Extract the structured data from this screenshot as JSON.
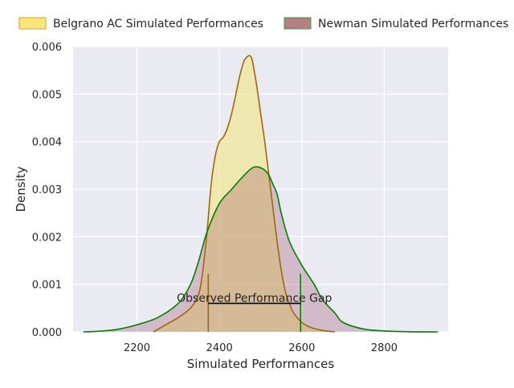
{
  "chart_data": {
    "type": "area",
    "title": "",
    "xlabel": "Simulated Performances",
    "ylabel": "Density",
    "xlim": [
      2045,
      2955
    ],
    "ylim": [
      0,
      0.006
    ],
    "x_ticks": [
      2200,
      2400,
      2600,
      2800
    ],
    "y_ticks": [
      0,
      0.001,
      0.002,
      0.003,
      0.004,
      0.005,
      0.006
    ],
    "x_tick_labels": [
      "2200",
      "2400",
      "2600",
      "2800"
    ],
    "y_tick_labels": [
      "0.000",
      "0.001",
      "0.002",
      "0.003",
      "0.004",
      "0.005",
      "0.006"
    ],
    "grid": true,
    "legend_position": "top",
    "series": [
      {
        "name": "Belgrano AC Simulated Performances",
        "fill_color": "#f0e68c",
        "line_color": "#a0670a",
        "x": [
          2240,
          2270,
          2300,
          2330,
          2350,
          2360,
          2370,
          2380,
          2390,
          2400,
          2410,
          2420,
          2430,
          2440,
          2450,
          2460,
          2470,
          2475,
          2480,
          2490,
          2500,
          2510,
          2520,
          2530,
          2540,
          2550,
          2560,
          2570,
          2580,
          2600,
          2620,
          2650,
          2680
        ],
        "y": [
          0.0,
          0.00015,
          0.0003,
          0.0005,
          0.0008,
          0.0013,
          0.0021,
          0.0031,
          0.0037,
          0.004,
          0.0041,
          0.0043,
          0.0046,
          0.005,
          0.0054,
          0.0057,
          0.0058,
          0.0058,
          0.0057,
          0.0052,
          0.0046,
          0.004,
          0.0033,
          0.0026,
          0.0019,
          0.0013,
          0.00085,
          0.0006,
          0.0004,
          0.0002,
          0.0001,
          3e-05,
          0.0
        ]
      },
      {
        "name": "Newman Simulated Performances",
        "fill_color": "#8b2f4a",
        "line_color": "#008000",
        "x": [
          2070,
          2100,
          2150,
          2200,
          2250,
          2300,
          2330,
          2350,
          2370,
          2400,
          2430,
          2450,
          2470,
          2480,
          2490,
          2500,
          2510,
          2520,
          2530,
          2540,
          2550,
          2570,
          2600,
          2630,
          2650,
          2680,
          2700,
          2750,
          2800,
          2850,
          2900,
          2930
        ],
        "y": [
          0.0,
          1e-05,
          5e-05,
          0.00015,
          0.0003,
          0.0006,
          0.001,
          0.0015,
          0.0021,
          0.0027,
          0.003,
          0.0032,
          0.00338,
          0.00345,
          0.00347,
          0.00345,
          0.0034,
          0.0033,
          0.0031,
          0.0029,
          0.0025,
          0.0019,
          0.0014,
          0.001,
          0.00068,
          0.0004,
          0.0002,
          6e-05,
          2e-05,
          5e-06,
          1e-06,
          0.0
        ]
      }
    ],
    "annotation": {
      "text": "Observed Performance Gap",
      "x_start": 2373,
      "x_end": 2597,
      "y": 0.0006,
      "tick_height": 0.00122
    }
  }
}
